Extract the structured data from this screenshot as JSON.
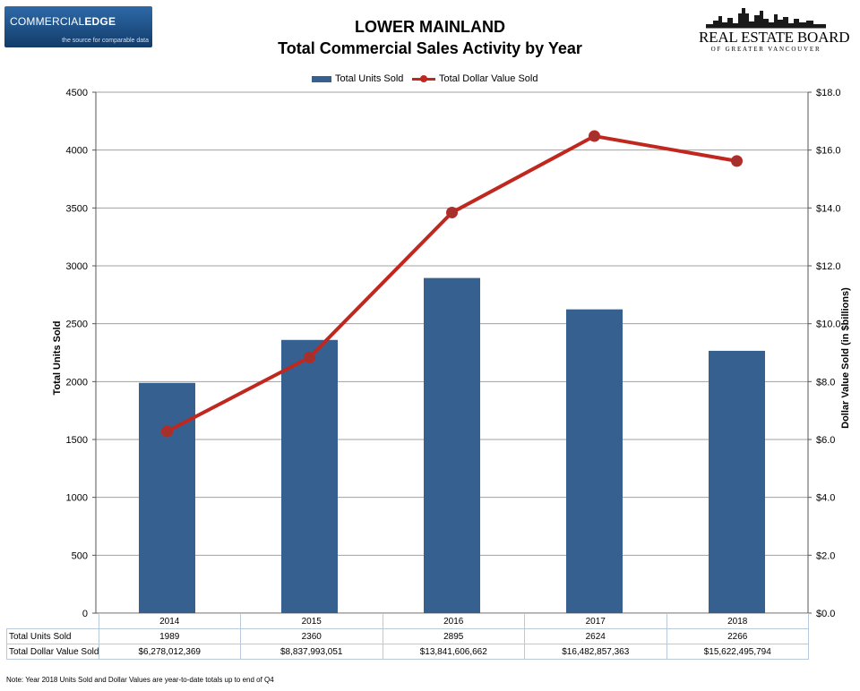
{
  "header": {
    "left_logo": {
      "brand_regular": "COMMERCIAL",
      "brand_bold": "EDGE",
      "tagline": "the source for comparable data"
    },
    "title_line1": "LOWER MAINLAND",
    "title_line2": "Total Commercial Sales Activity by Year",
    "right_logo": {
      "name": "REAL ESTATE BOARD",
      "subtitle": "OF GREATER VANCOUVER"
    }
  },
  "colors": {
    "bar": "#36608f",
    "line": "#c0281f",
    "marker": "#a5302c",
    "grid": "#a0a0a0",
    "table_border": "#b9c9dc"
  },
  "chart_data": {
    "type": "bar",
    "categories": [
      "2014",
      "2015",
      "2016",
      "2017",
      "2018"
    ],
    "series": [
      {
        "name": "Total Units Sold",
        "type": "bar",
        "axis": "left",
        "values": [
          1989,
          2360,
          2895,
          2624,
          2266
        ]
      },
      {
        "name": "Total Dollar Value Sold",
        "type": "line",
        "axis": "right",
        "values": [
          6.278,
          8.838,
          13.842,
          16.483,
          15.622
        ]
      }
    ],
    "ylabel": "Total Units Sold",
    "y2label": "Dollar Value Sold (in $billions)",
    "ylim": [
      0,
      4500
    ],
    "y2lim": [
      0,
      18
    ],
    "yticks": [
      "0",
      "500",
      "1000",
      "1500",
      "2000",
      "2500",
      "3000",
      "3500",
      "4000",
      "4500"
    ],
    "y2ticks": [
      "$0.0",
      "$2.0",
      "$4.0",
      "$6.0",
      "$8.0",
      "$10.0",
      "$12.0",
      "$14.0",
      "$16.0",
      "$18.0"
    ],
    "legend": [
      "Total Units Sold",
      "Total Dollar Value Sold"
    ],
    "legend_position": "top-center",
    "grid": true
  },
  "table": {
    "rows": [
      {
        "label": "Total Units Sold",
        "values": [
          "1989",
          "2360",
          "2895",
          "2624",
          "2266"
        ]
      },
      {
        "label": "Total Dollar Value Sold",
        "values": [
          "$6,278,012,369",
          "$8,837,993,051",
          "$13,841,606,662",
          "$16,482,857,363",
          "$15,622,495,794"
        ]
      }
    ]
  },
  "note": "Note: Year 2018 Units Sold and Dollar Values are year-to-date totals up to end of Q4"
}
